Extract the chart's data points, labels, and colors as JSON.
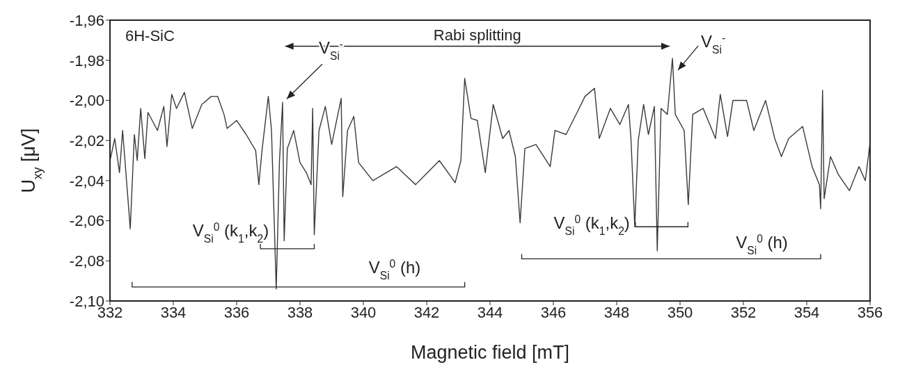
{
  "chart_data": {
    "type": "line",
    "xlabel": "Magnetic field [mT]",
    "ylabel": "U$_{xy}$ [μV]",
    "color": "#3a3a3a",
    "xlim": [
      332,
      356
    ],
    "xticks": [
      332,
      334,
      336,
      338,
      340,
      342,
      344,
      346,
      348,
      350,
      352,
      354,
      356
    ],
    "ylim": [
      -2.1,
      -1.96
    ],
    "yticks": [
      {
        "value": -2.1,
        "label": "-2,10"
      },
      {
        "value": -2.08,
        "label": "-2,08"
      },
      {
        "value": -2.06,
        "label": "-2,06"
      },
      {
        "value": -2.04,
        "label": "-2,04"
      },
      {
        "value": -2.02,
        "label": "-2,02"
      },
      {
        "value": -2.0,
        "label": "-2,00"
      },
      {
        "value": -1.98,
        "label": "-1,98"
      },
      {
        "value": -1.96,
        "label": "-1,96"
      }
    ],
    "x": [
      332.0,
      332.15,
      332.3,
      332.4,
      332.64,
      332.77,
      332.86,
      332.97,
      333.1,
      333.2,
      333.5,
      333.7,
      333.8,
      333.95,
      334.1,
      334.35,
      334.6,
      334.9,
      335.2,
      335.4,
      335.6,
      335.7,
      336.0,
      336.3,
      336.6,
      336.7,
      336.8,
      337.0,
      337.1,
      337.25,
      337.35,
      337.45,
      337.5,
      337.6,
      337.8,
      338.0,
      338.2,
      338.35,
      338.4,
      338.45,
      338.6,
      338.8,
      339.0,
      339.3,
      339.35,
      339.5,
      339.7,
      339.85,
      340.3,
      341.05,
      341.65,
      342.4,
      342.9,
      343.08,
      343.2,
      343.4,
      343.6,
      343.85,
      344.1,
      344.4,
      344.6,
      344.8,
      344.95,
      345.1,
      345.45,
      345.9,
      346.05,
      346.4,
      346.75,
      347.0,
      347.3,
      347.45,
      347.8,
      348.1,
      348.37,
      348.45,
      348.57,
      348.68,
      348.85,
      349.0,
      349.19,
      349.28,
      349.4,
      349.6,
      349.76,
      349.85,
      350.13,
      350.26,
      350.4,
      350.73,
      351.12,
      351.27,
      351.5,
      351.67,
      352.1,
      352.33,
      352.7,
      352.99,
      353.2,
      353.43,
      353.87,
      354.17,
      354.4,
      354.44,
      354.5,
      354.55,
      354.75,
      355.0,
      355.35,
      355.65,
      355.85,
      356.0
    ],
    "values": [
      -2.03,
      -2.019,
      -2.036,
      -2.015,
      -2.064,
      -2.017,
      -2.03,
      -2.004,
      -2.029,
      -2.006,
      -2.015,
      -2.003,
      -2.023,
      -1.997,
      -2.004,
      -1.996,
      -2.014,
      -2.002,
      -1.998,
      -1.998,
      -2.007,
      -2.014,
      -2.01,
      -2.017,
      -2.025,
      -2.042,
      -2.025,
      -1.998,
      -2.015,
      -2.094,
      -2.031,
      -2.001,
      -2.07,
      -2.024,
      -2.015,
      -2.031,
      -2.036,
      -2.042,
      -2.004,
      -2.067,
      -2.015,
      -2.003,
      -2.022,
      -1.999,
      -2.048,
      -2.015,
      -2.008,
      -2.031,
      -2.04,
      -2.033,
      -2.042,
      -2.03,
      -2.041,
      -2.03,
      -1.989,
      -2.009,
      -2.01,
      -2.036,
      -2.002,
      -2.019,
      -2.015,
      -2.028,
      -2.061,
      -2.024,
      -2.022,
      -2.033,
      -2.015,
      -2.017,
      -2.006,
      -1.998,
      -1.994,
      -2.019,
      -2.004,
      -2.012,
      -2.002,
      -2.019,
      -2.063,
      -2.02,
      -2.002,
      -2.017,
      -2.003,
      -2.075,
      -2.004,
      -2.007,
      -1.979,
      -2.007,
      -2.015,
      -2.052,
      -2.007,
      -2.004,
      -2.019,
      -1.997,
      -2.018,
      -2.0,
      -2.0,
      -2.015,
      -2.0,
      -2.019,
      -2.028,
      -2.019,
      -2.013,
      -2.033,
      -2.042,
      -2.054,
      -1.995,
      -2.049,
      -2.028,
      -2.037,
      -2.045,
      -2.033,
      -2.04,
      -2.021
    ],
    "annotations": [
      "6H-SiC",
      "Rabi splitting",
      {
        "text": "V$_{Si}$$^{-}$",
        "x": 337.45,
        "y": -2.001
      },
      {
        "text": "V$_{Si}$$^{-}$",
        "x": 349.76,
        "y": -1.979
      },
      "V$_{Si}$$^{0}$ (k$_{1}$,k$_{2}$)",
      "V$_{Si}$$^{0}$ (h)",
      {
        "text": "V$_{Si}$$^{0}$ (k$_{1}$,k$_{2}$)",
        "x": 349.42,
        "y": -2.063
      },
      "V$_{Si}$$^{0}$ (h)"
    ]
  }
}
